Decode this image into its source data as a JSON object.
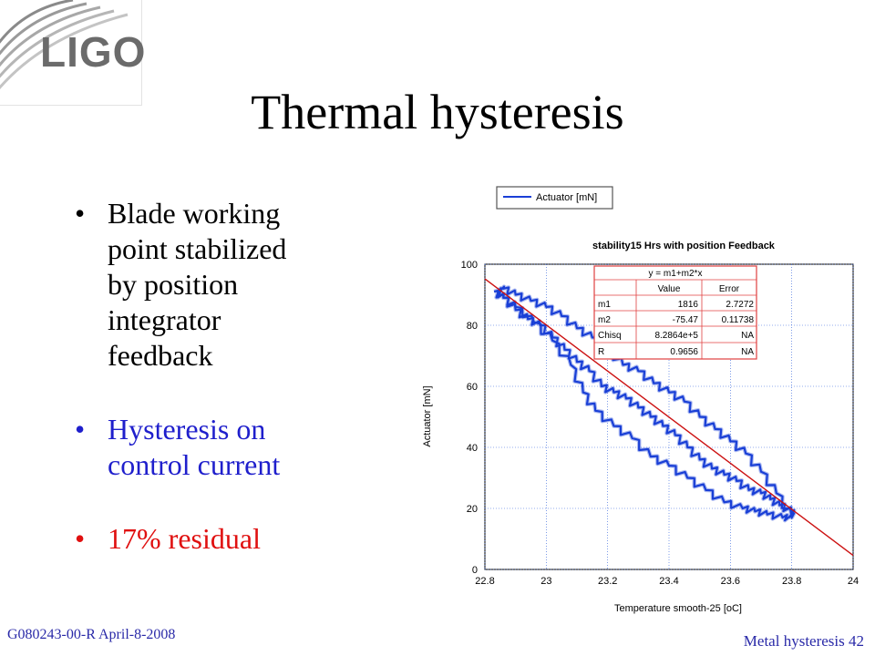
{
  "slide": {
    "logo_text": "LIGO",
    "title": "Thermal hysteresis",
    "bullets": [
      {
        "text": "Blade working point stabilized by position integrator feedback",
        "color": "#000000"
      },
      {
        "text": "Hysteresis on control current",
        "color": "#1f1fcc"
      },
      {
        "text": "17% residual",
        "color": "#e01010"
      }
    ],
    "footer_left": "G080243-00-R April-8-2008",
    "footer_right": "Metal hysteresis 42"
  },
  "chart_data": {
    "type": "line",
    "title": "stability15 Hrs with position Feedback",
    "xlabel": "Temperature  smooth-25 [oC]",
    "ylabel": "Actuator [mN]",
    "xlim": [
      22.8,
      24
    ],
    "ylim": [
      0,
      100
    ],
    "xticks": [
      "22.8",
      "23",
      "23.2",
      "23.4",
      "23.6",
      "23.8",
      "24"
    ],
    "yticks": [
      "0",
      "20",
      "40",
      "60",
      "80",
      "100"
    ],
    "grid": true,
    "legend_position": "top-left, above plot",
    "series": [
      {
        "name": "Actuator [mN]",
        "color": "#1a3fd6",
        "x": [
          22.83,
          22.86,
          22.9,
          22.94,
          22.98,
          23.02,
          23.06,
          23.1,
          23.14,
          23.18,
          23.22,
          23.26,
          23.3,
          23.34,
          23.38,
          23.42,
          23.46,
          23.5,
          23.54,
          23.58,
          23.62,
          23.66,
          23.7,
          23.73,
          23.76,
          23.8,
          23.8,
          23.77,
          23.72,
          23.68,
          23.64,
          23.58,
          23.52,
          23.46,
          23.4,
          23.34,
          23.28,
          23.22,
          23.16,
          23.12,
          23.08,
          23.02,
          22.96,
          22.9,
          22.86,
          22.84,
          22.86,
          22.9,
          22.95,
          23.0,
          23.05,
          23.1,
          23.15,
          23.2,
          23.25,
          23.3,
          23.35,
          23.4,
          23.45,
          23.5,
          23.55,
          23.6,
          23.65,
          23.7,
          23.75,
          23.8
        ],
        "y": [
          91,
          89,
          85,
          82,
          80,
          76,
          72,
          68,
          65,
          60,
          58,
          56,
          53,
          50,
          47,
          44,
          40,
          36,
          33,
          31,
          29,
          26,
          25,
          23,
          21,
          19,
          17,
          17,
          18,
          19,
          20,
          22,
          26,
          30,
          34,
          37,
          43,
          47,
          52,
          58,
          67,
          75,
          81,
          86,
          89,
          91,
          92,
          90,
          88,
          86,
          83,
          79,
          76,
          72,
          67,
          65,
          61,
          58,
          55,
          50,
          46,
          42,
          38,
          32,
          25,
          17
        ]
      },
      {
        "name": "y = m1+m2*x",
        "color": "#cc1111",
        "x": [
          22.8,
          24
        ],
        "y": [
          95.2,
          4.6
        ]
      }
    ],
    "fit_table": {
      "header": "y = m1+m2*x",
      "columns": [
        "",
        "Value",
        "Error"
      ],
      "rows": [
        [
          "m1",
          "1816",
          "2.7272"
        ],
        [
          "m2",
          "-75.47",
          "0.11738"
        ],
        [
          "Chisq",
          "8.2864e+5",
          "NA"
        ],
        [
          "R",
          "0.9656",
          "NA"
        ]
      ]
    }
  }
}
